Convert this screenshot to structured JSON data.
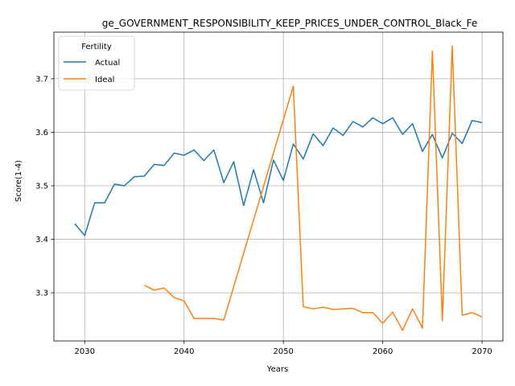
{
  "chart_data": {
    "type": "line",
    "title": "ge_GOVERNMENT_RESPONSIBILITY_KEEP_PRICES_UNDER_CONTROL_Black_Fe",
    "xlabel": "Years",
    "ylabel": "Score(1-4)",
    "xlim": [
      2026.9,
      2072.1
    ],
    "ylim": [
      3.21,
      3.787
    ],
    "xticks": [
      2030,
      2040,
      2050,
      2060,
      2070
    ],
    "yticks": [
      3.3,
      3.4,
      3.5,
      3.6,
      3.7
    ],
    "grid": true,
    "legend": {
      "title": "Fertility",
      "position": "top-left"
    },
    "series": [
      {
        "name": "Actual",
        "color": "#1f77b4",
        "x": [
          2029,
          2030,
          2031,
          2032,
          2033,
          2034,
          2035,
          2036,
          2037,
          2038,
          2039,
          2040,
          2041,
          2042,
          2043,
          2044,
          2045,
          2046,
          2047,
          2048,
          2049,
          2050,
          2051,
          2052,
          2053,
          2054,
          2055,
          2056,
          2057,
          2058,
          2059,
          2060,
          2061,
          2062,
          2063,
          2064,
          2065,
          2066,
          2067,
          2068,
          2069,
          2070
        ],
        "values": [
          3.429,
          3.407,
          3.468,
          3.468,
          3.503,
          3.5,
          3.517,
          3.518,
          3.54,
          3.538,
          3.561,
          3.557,
          3.567,
          3.547,
          3.567,
          3.506,
          3.545,
          3.463,
          3.53,
          3.468,
          3.548,
          3.51,
          3.578,
          3.55,
          3.597,
          3.575,
          3.608,
          3.594,
          3.62,
          3.61,
          3.627,
          3.616,
          3.627,
          3.596,
          3.616,
          3.564,
          3.596,
          3.552,
          3.598,
          3.579,
          3.622,
          3.618
        ]
      },
      {
        "name": "Ideal",
        "color": "#ff7f0e",
        "x": [
          2036,
          2037,
          2038,
          2039,
          2040,
          2041,
          2042,
          2043,
          2044,
          2051,
          2052,
          2053,
          2054,
          2055,
          2056,
          2057,
          2058,
          2059,
          2060,
          2061,
          2062,
          2063,
          2064,
          2065,
          2066,
          2067,
          2068,
          2069,
          2070
        ],
        "values": [
          3.314,
          3.305,
          3.309,
          3.291,
          3.285,
          3.252,
          3.252,
          3.252,
          3.249,
          3.686,
          3.274,
          3.27,
          3.273,
          3.269,
          3.27,
          3.271,
          3.263,
          3.263,
          3.243,
          3.264,
          3.23,
          3.27,
          3.234,
          3.752,
          3.248,
          3.761,
          3.258,
          3.263,
          3.255
        ]
      }
    ]
  }
}
